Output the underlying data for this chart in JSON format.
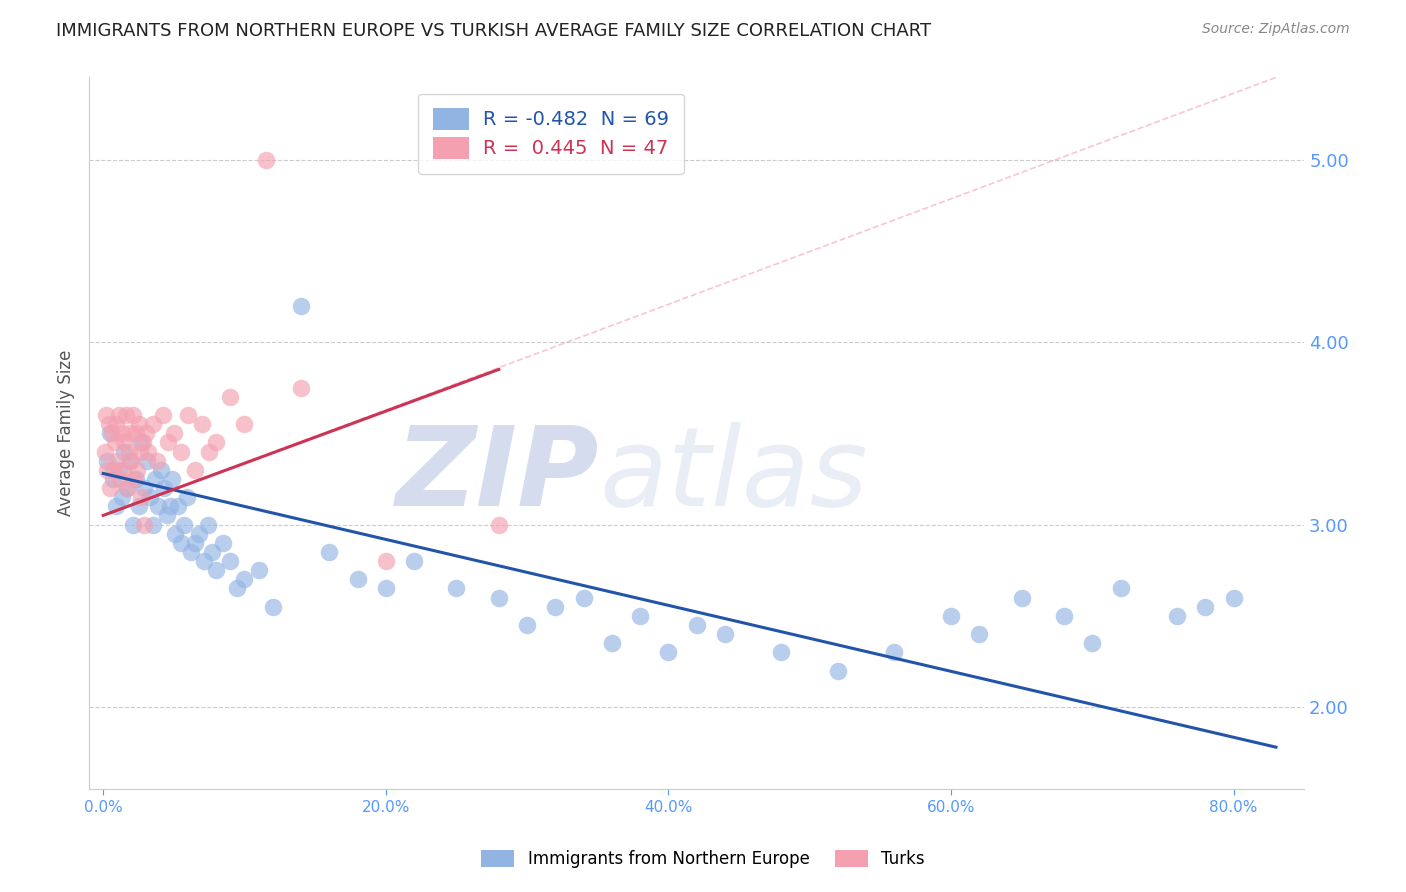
{
  "title": "IMMIGRANTS FROM NORTHERN EUROPE VS TURKISH AVERAGE FAMILY SIZE CORRELATION CHART",
  "source": "Source: ZipAtlas.com",
  "ylabel": "Average Family Size",
  "xlabel_ticks": [
    "0.0%",
    "20.0%",
    "40.0%",
    "60.0%",
    "80.0%"
  ],
  "xlabel_vals": [
    0.0,
    20.0,
    40.0,
    60.0,
    80.0
  ],
  "ylabel_ticks": [
    2.0,
    3.0,
    4.0,
    5.0
  ],
  "ylim": [
    1.55,
    5.45
  ],
  "xlim": [
    -1.0,
    85.0
  ],
  "blue_R": -0.482,
  "blue_N": 69,
  "pink_R": 0.445,
  "pink_N": 47,
  "blue_label": "Immigrants from Northern Europe",
  "pink_label": "Turks",
  "blue_color": "#92b4e3",
  "pink_color": "#f4a0b0",
  "blue_line_color": "#2255aa",
  "pink_line_color": "#cc3355",
  "dash_line_color": "#f4a0b0",
  "watermark_zip": "ZIP",
  "watermark_atlas": "atlas",
  "watermark_color": "#c8d8f0",
  "title_color": "#222222",
  "axis_color": "#5599ff",
  "grid_color": "#cccccc",
  "blue_x": [
    0.3,
    0.5,
    0.7,
    0.9,
    1.1,
    1.3,
    1.5,
    1.7,
    1.9,
    2.1,
    2.3,
    2.5,
    2.7,
    2.9,
    3.1,
    3.3,
    3.5,
    3.7,
    3.9,
    4.1,
    4.3,
    4.5,
    4.7,
    4.9,
    5.1,
    5.3,
    5.5,
    5.7,
    5.9,
    6.2,
    6.5,
    6.8,
    7.1,
    7.4,
    7.7,
    8.0,
    8.5,
    9.0,
    9.5,
    10.0,
    11.0,
    12.0,
    14.0,
    16.0,
    18.0,
    20.0,
    22.0,
    25.0,
    28.0,
    30.0,
    32.0,
    34.0,
    36.0,
    38.0,
    40.0,
    42.0,
    44.0,
    48.0,
    52.0,
    56.0,
    60.0,
    62.0,
    65.0,
    68.0,
    70.0,
    72.0,
    76.0,
    78.0,
    80.0
  ],
  "blue_y": [
    3.35,
    3.5,
    3.25,
    3.1,
    3.3,
    3.15,
    3.4,
    3.2,
    3.35,
    3.0,
    3.25,
    3.1,
    3.45,
    3.2,
    3.35,
    3.15,
    3.0,
    3.25,
    3.1,
    3.3,
    3.2,
    3.05,
    3.1,
    3.25,
    2.95,
    3.1,
    2.9,
    3.0,
    3.15,
    2.85,
    2.9,
    2.95,
    2.8,
    3.0,
    2.85,
    2.75,
    2.9,
    2.8,
    2.65,
    2.7,
    2.75,
    2.55,
    4.2,
    2.85,
    2.7,
    2.65,
    2.8,
    2.65,
    2.6,
    2.45,
    2.55,
    2.6,
    2.35,
    2.5,
    2.3,
    2.45,
    2.4,
    2.3,
    2.2,
    2.3,
    2.5,
    2.4,
    2.6,
    2.5,
    2.35,
    2.65,
    2.5,
    2.55,
    2.6
  ],
  "pink_x": [
    0.1,
    0.2,
    0.3,
    0.4,
    0.5,
    0.6,
    0.7,
    0.8,
    0.9,
    1.0,
    1.1,
    1.2,
    1.3,
    1.4,
    1.5,
    1.6,
    1.7,
    1.8,
    1.9,
    2.0,
    2.1,
    2.2,
    2.3,
    2.4,
    2.5,
    2.6,
    2.7,
    2.8,
    2.9,
    3.0,
    3.2,
    3.5,
    3.8,
    4.2,
    4.6,
    5.0,
    5.5,
    6.0,
    6.5,
    7.0,
    7.5,
    8.0,
    9.0,
    10.0,
    14.0,
    20.0,
    28.0
  ],
  "pink_y": [
    3.4,
    3.6,
    3.3,
    3.55,
    3.2,
    3.5,
    3.3,
    3.45,
    3.55,
    3.35,
    3.6,
    3.25,
    3.5,
    3.3,
    3.45,
    3.6,
    3.2,
    3.4,
    3.5,
    3.35,
    3.6,
    3.25,
    3.5,
    3.3,
    3.55,
    3.4,
    3.15,
    3.45,
    3.0,
    3.5,
    3.4,
    3.55,
    3.35,
    3.6,
    3.45,
    3.5,
    3.4,
    3.6,
    3.3,
    3.55,
    3.4,
    3.45,
    3.7,
    3.55,
    3.75,
    2.8,
    3.0
  ],
  "outlier_pink_x": 11.5,
  "outlier_pink_y": 5.0,
  "blue_trend_x0": 0.0,
  "blue_trend_y0": 3.28,
  "blue_trend_x1": 83.0,
  "blue_trend_y1": 1.78,
  "pink_trend_x0": 0.0,
  "pink_trend_y0": 3.05,
  "pink_trend_x1": 28.0,
  "pink_trend_y1": 3.85,
  "dash_x0": 0.0,
  "dash_y0": 3.05,
  "dash_x1": 83.0,
  "dash_y1": 5.45
}
